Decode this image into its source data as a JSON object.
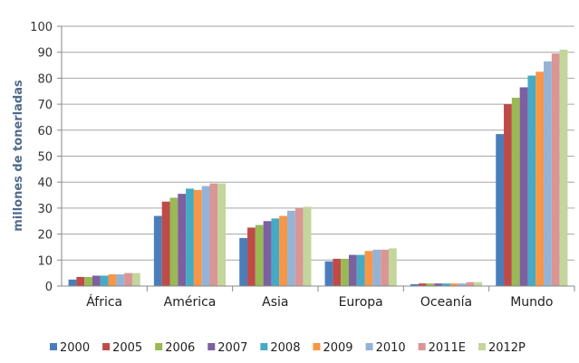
{
  "chart_data": {
    "type": "bar",
    "title": "",
    "xlabel": "",
    "ylabel": "millones de tonerladas",
    "ylim": [
      0,
      100
    ],
    "yticks": [
      "0",
      "10",
      "20",
      "30",
      "40",
      "50",
      "60",
      "70",
      "80",
      "90",
      "100"
    ],
    "grid": true,
    "legend_position": "bottom",
    "categories": [
      "África",
      "América",
      "Asia",
      "Europa",
      "Oceanía",
      "Mundo"
    ],
    "series": [
      {
        "name": "2000",
        "color": "#4a7ebb",
        "values": [
          2.5,
          27,
          18.5,
          9.5,
          0.7,
          58.5
        ]
      },
      {
        "name": "2005",
        "color": "#be4b48",
        "values": [
          3.5,
          32.5,
          22.5,
          10.5,
          1,
          70
        ]
      },
      {
        "name": "2006",
        "color": "#98b954",
        "values": [
          3.5,
          34,
          23.5,
          10.5,
          1,
          72.5
        ]
      },
      {
        "name": "2007",
        "color": "#7d60a0",
        "values": [
          4,
          35.5,
          25,
          12,
          1,
          76.5
        ]
      },
      {
        "name": "2008",
        "color": "#46aac5",
        "values": [
          4,
          37.5,
          26,
          12,
          1,
          81
        ]
      },
      {
        "name": "2009",
        "color": "#f79646",
        "values": [
          4.5,
          37,
          27,
          13.5,
          1,
          82.5
        ]
      },
      {
        "name": "2010",
        "color": "#95b3d7",
        "values": [
          4.5,
          38.5,
          29,
          14,
          1,
          86.5
        ]
      },
      {
        "name": "2011E",
        "color": "#d99694",
        "values": [
          5,
          39.5,
          30,
          14,
          1.5,
          89.5
        ]
      },
      {
        "name": "2012P",
        "color": "#c3d69b",
        "values": [
          5,
          39.5,
          30.5,
          14.5,
          1.5,
          91
        ]
      }
    ]
  }
}
